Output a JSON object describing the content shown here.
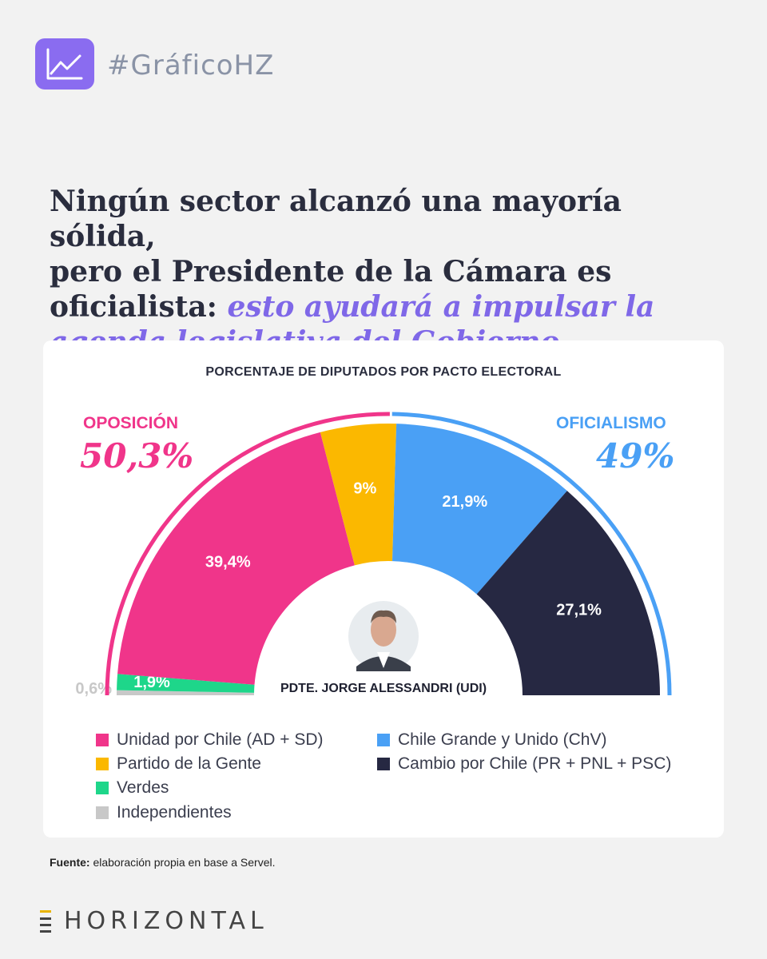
{
  "header": {
    "hashtag": "#GráficoHZ",
    "icon": "line-chart-icon"
  },
  "headline": {
    "line1": "Ningún sector alcanzó una mayoría sólida,",
    "line2": "pero el Presidente de la Cámara es",
    "line3_plain": "oficialista: ",
    "line3_accent": "esto ayudará a impulsar la",
    "line4_accent": "agenda legislativa del Gobierno"
  },
  "groups": {
    "opposition": {
      "label": "OPOSICIÓN",
      "value": "50,3%",
      "color": "#f0358a"
    },
    "government": {
      "label": "OFICIALISMO",
      "value": "49%",
      "color": "#4aa0f5"
    }
  },
  "center": {
    "caption": "PDTE. JORGE ALESSANDRI (UDI)"
  },
  "chart_data": {
    "type": "pie",
    "subtype": "half-donut",
    "title": "PORCENTAJE DE DIPUTADOS POR PACTO ELECTORAL",
    "unit": "%",
    "categories": [
      "Independientes",
      "Verdes",
      "Unidad por Chile (AD + SD)",
      "Partido de la Gente",
      "Chile Grande y Unido (ChV)",
      "Cambio por Chile (PR +  PNL + PSC)"
    ],
    "values": [
      0.6,
      1.9,
      39.4,
      9,
      21.9,
      27.1
    ],
    "labels": [
      "0,6%",
      "1,9%",
      "39,4%",
      "9%",
      "21,9%",
      "27,1%"
    ],
    "colors": [
      "#c8c8c8",
      "#1ed68a",
      "#f0358a",
      "#fbb800",
      "#4aa0f5",
      "#262842"
    ]
  },
  "legend": [
    {
      "label": "Unidad por Chile (AD + SD)",
      "color": "#f0358a"
    },
    {
      "label": "Partido de la Gente",
      "color": "#fbb800"
    },
    {
      "label": "Verdes",
      "color": "#1ed68a"
    },
    {
      "label": "Independientes",
      "color": "#c8c8c8"
    },
    {
      "label": "Chile Grande y Unido (ChV)",
      "color": "#4aa0f5"
    },
    {
      "label": "Cambio por Chile (PR +  PNL + PSC)",
      "color": "#262842"
    }
  ],
  "source": {
    "label": "Fuente:",
    "text": " elaboración propia en base a Servel."
  },
  "brand": {
    "name": "HORIZONTAL"
  }
}
